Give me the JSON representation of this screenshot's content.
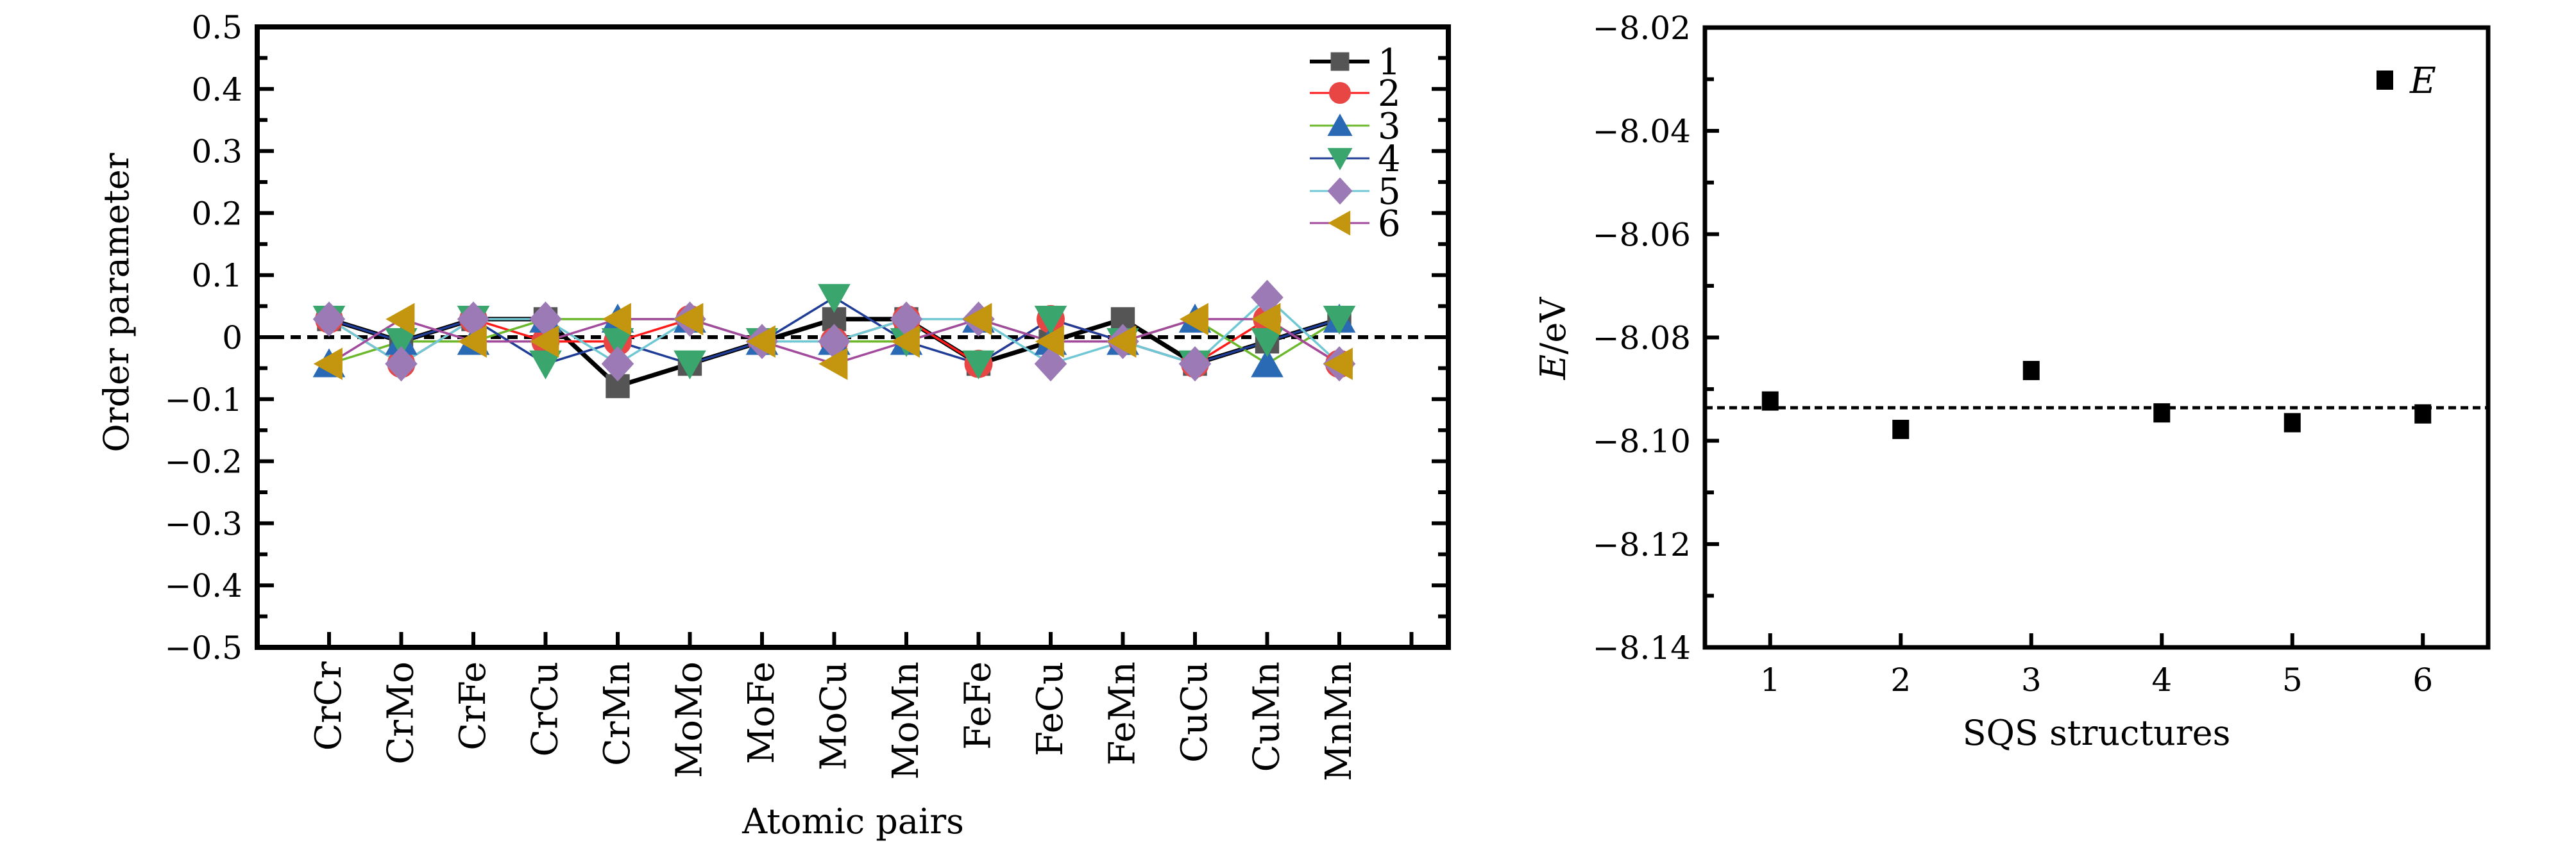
{
  "chart_data": [
    {
      "type": "line",
      "xlabel": "Atomic pairs",
      "ylabel": "Order parameter",
      "ylim": [
        -0.5,
        0.5
      ],
      "yticks": [
        "0.5",
        "0.4",
        "0.3",
        "0.2",
        "0.1",
        "0",
        "−0.1",
        "−0.2",
        "−0.3",
        "−0.4",
        "−0.5"
      ],
      "categories": [
        "CrCr",
        "CrMo",
        "CrFe",
        "CrCu",
        "CrMn",
        "MoMo",
        "MoFe",
        "MoCu",
        "MoMn",
        "FeFe",
        "FeCu",
        "FeMn",
        "CuCu",
        "CuMn",
        "MnMn"
      ],
      "reference_line": 0,
      "legend_position": "top-right",
      "grid": false,
      "series": [
        {
          "name": "1",
          "marker": "square",
          "line_color": "#000000",
          "marker_color": "#555555",
          "values": [
            0.029,
            -0.007,
            0.029,
            0.029,
            -0.079,
            -0.043,
            -0.007,
            0.029,
            0.029,
            -0.043,
            -0.007,
            0.029,
            -0.043,
            -0.007,
            0.029
          ]
        },
        {
          "name": "2",
          "marker": "circle",
          "line_color": "#ff1a1a",
          "marker_color": "#e84545",
          "values": [
            0.029,
            -0.043,
            0.029,
            -0.007,
            -0.007,
            0.029,
            -0.007,
            -0.007,
            0.029,
            -0.043,
            0.029,
            -0.007,
            -0.043,
            0.029,
            -0.043
          ]
        },
        {
          "name": "3",
          "marker": "triangle-up",
          "line_color": "#6cb82c",
          "marker_color": "#2a6ab4",
          "values": [
            -0.043,
            -0.007,
            -0.007,
            0.029,
            0.029,
            0.029,
            -0.007,
            -0.007,
            -0.007,
            0.029,
            -0.007,
            -0.007,
            0.029,
            -0.043,
            0.029
          ]
        },
        {
          "name": "4",
          "marker": "triangle-down",
          "line_color": "#1f3c96",
          "marker_color": "#3aa56c",
          "values": [
            0.029,
            -0.007,
            0.029,
            -0.043,
            -0.007,
            -0.043,
            -0.007,
            0.064,
            -0.007,
            -0.043,
            0.029,
            -0.007,
            -0.043,
            -0.007,
            0.029
          ]
        },
        {
          "name": "5",
          "marker": "diamond",
          "line_color": "#70c8d4",
          "marker_color": "#9b7ab6",
          "values": [
            0.029,
            -0.043,
            0.029,
            0.029,
            -0.043,
            0.029,
            -0.007,
            -0.007,
            0.029,
            0.029,
            -0.043,
            -0.007,
            -0.043,
            0.064,
            -0.043
          ]
        },
        {
          "name": "6",
          "marker": "triangle-left",
          "line_color": "#a24a9c",
          "marker_color": "#c4960f",
          "values": [
            -0.043,
            0.029,
            -0.007,
            -0.007,
            0.029,
            0.029,
            -0.007,
            -0.043,
            -0.007,
            0.029,
            -0.007,
            -0.007,
            0.029,
            0.029,
            -0.043
          ]
        }
      ]
    },
    {
      "type": "scatter",
      "xlabel": "SQS  structures",
      "ylabel_italic": "E",
      "ylabel_unit": "/eV",
      "xlim": [
        0.5,
        6.5
      ],
      "ylim": [
        -8.14,
        -8.02
      ],
      "xticks": [
        "1",
        "2",
        "3",
        "4",
        "5",
        "6"
      ],
      "yticks": [
        "−8.02",
        "−8.04",
        "−8.06",
        "−8.08",
        "−8.10",
        "−8.12",
        "−8.14"
      ],
      "reference_line": -8.0936,
      "legend_position": "top-right",
      "grid": false,
      "series": [
        {
          "name": "E",
          "marker": "square",
          "marker_color": "#000000",
          "x": [
            1,
            2,
            3,
            4,
            5,
            6
          ],
          "y": [
            -8.0923,
            -8.0978,
            -8.0864,
            -8.0946,
            -8.0965,
            -8.0948
          ]
        }
      ]
    }
  ]
}
